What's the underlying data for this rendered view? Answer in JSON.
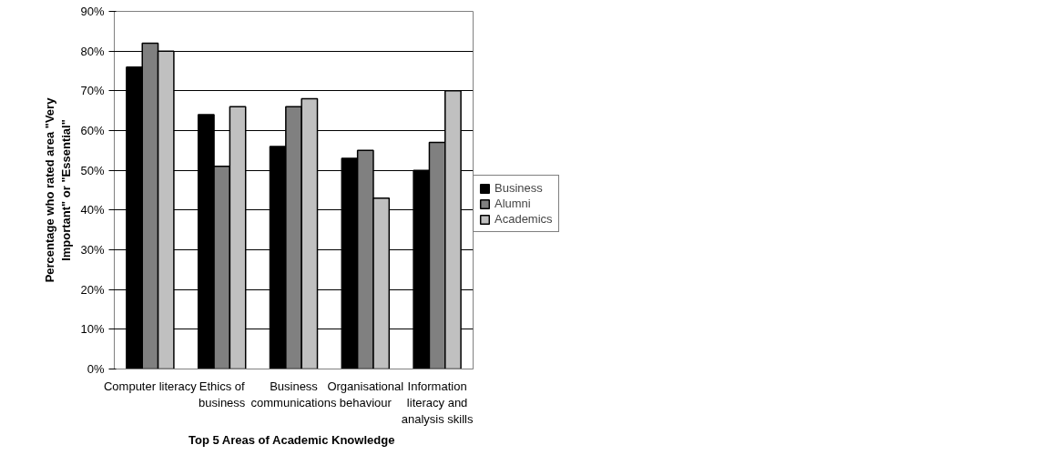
{
  "chart_data": {
    "type": "bar",
    "xlabel": "Top 5 Areas of Academic  Knowledge",
    "ylabel": "Percentage who rated area \"Very Important\" or \"Essential\"",
    "categories": [
      "Computer literacy",
      "Ethics of business",
      "Business communications",
      "Organisational behaviour",
      "Information literacy and analysis skills"
    ],
    "series": [
      {
        "name": "Business",
        "color": "#000000",
        "values": [
          76,
          64,
          56,
          53,
          50
        ]
      },
      {
        "name": "Alumni",
        "color": "#808080",
        "values": [
          82,
          51,
          66,
          55,
          57
        ]
      },
      {
        "name": "Academics",
        "color": "#c0c0c0",
        "values": [
          80,
          66,
          68,
          43,
          70
        ]
      }
    ],
    "ylim": [
      0,
      90
    ],
    "yticks": [
      {
        "value": 0,
        "label": "0%"
      },
      {
        "value": 10,
        "label": "10%"
      },
      {
        "value": 20,
        "label": "20%"
      },
      {
        "value": 30,
        "label": "30%"
      },
      {
        "value": 40,
        "label": "40%"
      },
      {
        "value": 50,
        "label": "50%"
      },
      {
        "value": 60,
        "label": "60%"
      },
      {
        "value": 70,
        "label": "70%"
      },
      {
        "value": 80,
        "label": "80%"
      },
      {
        "value": 90,
        "label": "90%"
      }
    ],
    "grid": "y",
    "legend": "right"
  }
}
